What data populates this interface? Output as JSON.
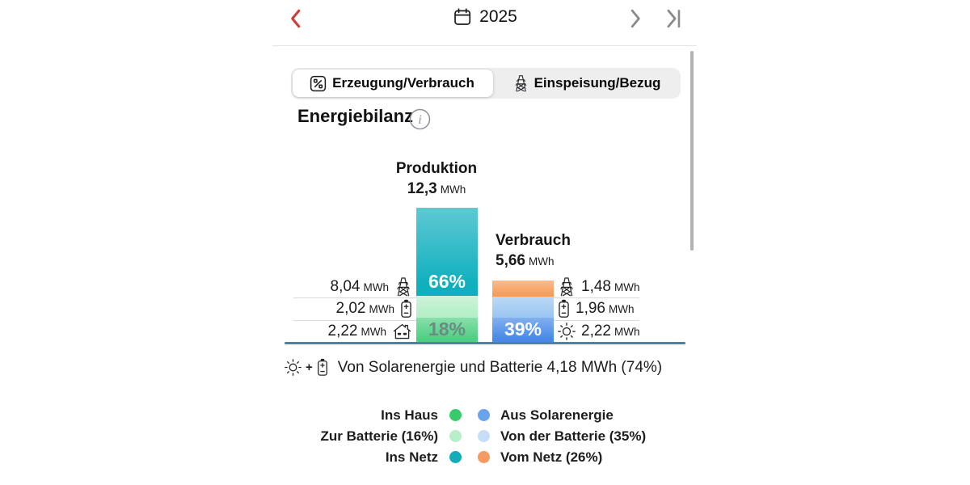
{
  "header": {
    "year": "2025",
    "nav": {
      "back_icon": "chevron-left-icon",
      "calendar_icon": "calendar-icon",
      "next_icon": "chevron-right-icon",
      "last_icon": "chevron-to-end-icon"
    }
  },
  "tabs": [
    {
      "label": "Erzeugung/Verbrauch",
      "icon": "percent-chart-icon",
      "selected": true
    },
    {
      "label": "Einspeisung/Bezug",
      "icon": "power-pylon-icon",
      "selected": false
    }
  ],
  "section": {
    "title": "Energiebilanz",
    "info_icon": "info-icon"
  },
  "chart_data": {
    "type": "bar",
    "variant": "stacked",
    "title": "Energiebilanz",
    "unit": "MWh",
    "axis_color": "#53809e",
    "bars": [
      {
        "name": "Produktion",
        "total_label": "12,3",
        "total_mwh": 12.3,
        "segments": [
          {
            "flow": "Ins Netz",
            "value_label": "8,04",
            "mwh": 8.04,
            "pct": 66,
            "pct_label": "66%",
            "pct_text_color": "#ffffff",
            "icon": "power-pylon-icon",
            "color": "#0fafbe"
          },
          {
            "flow": "Zur Batterie",
            "value_label": "2,02",
            "mwh": 2.02,
            "pct": 16,
            "pct_label": "",
            "icon": "battery-icon",
            "color": "#b5eec7"
          },
          {
            "flow": "Ins Haus",
            "value_label": "2,22",
            "mwh": 2.22,
            "pct": 18,
            "pct_label": "18%",
            "pct_text_color": "#6c8b84",
            "icon": "house-icon",
            "color": "#4ecf82"
          }
        ]
      },
      {
        "name": "Verbrauch",
        "total_label": "5,66",
        "total_mwh": 5.66,
        "segments": [
          {
            "flow": "Vom Netz",
            "value_label": "1,48",
            "mwh": 1.48,
            "pct": 26,
            "pct_label": "",
            "icon": "power-pylon-icon",
            "color": "#f69c58"
          },
          {
            "flow": "Von der Batterie",
            "value_label": "1,96",
            "mwh": 1.96,
            "pct": 35,
            "pct_label": "",
            "icon": "battery-icon",
            "color": "#9cc7f1"
          },
          {
            "flow": "Aus Solarenergie",
            "value_label": "2,22",
            "mwh": 2.22,
            "pct": 39,
            "pct_label": "39%",
            "pct_text_color": "#ffffff",
            "icon": "sun-icon",
            "color": "#4689e8"
          }
        ]
      }
    ],
    "summary": {
      "icons": [
        "sun-icon",
        "battery-icon"
      ],
      "plus": "+",
      "text": "Von Solarenergie und Batterie 4,18 MWh (74%)"
    },
    "legend": {
      "position": "bottom",
      "rows": [
        {
          "left_label": "Ins Haus",
          "left_color": "#38cb6c",
          "right_label": "Aus Solarenergie",
          "right_color": "#68a3ec"
        },
        {
          "left_label": "Zur Batterie (16%)",
          "left_color": "#b7efc9",
          "right_label": "Von der Batterie (35%)",
          "right_color": "#c7def8"
        },
        {
          "left_label": "Ins Netz",
          "left_color": "#14abba",
          "right_label": "Vom Netz (26%)",
          "right_color": "#f59a60"
        }
      ]
    }
  }
}
